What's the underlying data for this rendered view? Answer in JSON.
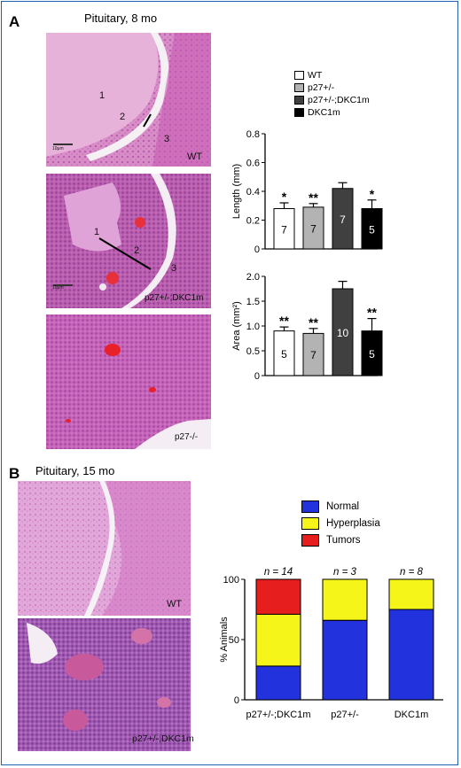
{
  "panel_a": {
    "letter": "A",
    "title": "Pituitary, 8 mo",
    "images": [
      {
        "label": "WT",
        "regions": [
          "1",
          "2",
          "3"
        ],
        "scalebar": "10μm"
      },
      {
        "label": "p27+/-;DKC1m",
        "regions": [
          "1",
          "2",
          "3"
        ],
        "scalebar": "10μm"
      },
      {
        "label": "p27-/-"
      }
    ],
    "legend": [
      {
        "label": "WT",
        "color": "#ffffff"
      },
      {
        "label": "p27+/-",
        "color": "#b3b3b3"
      },
      {
        "label": "p27+/-;DKC1m",
        "color": "#404040"
      },
      {
        "label": "DKC1m",
        "color": "#000000"
      }
    ]
  },
  "panel_b": {
    "letter": "B",
    "title": "Pituitary, 15 mo",
    "images": [
      {
        "label": "WT"
      },
      {
        "label": "p27+/-;DKC1m"
      }
    ],
    "legend": [
      {
        "label": "Normal",
        "color": "#2233dd"
      },
      {
        "label": "Hyperplasia",
        "color": "#f5f51a"
      },
      {
        "label": "Tumors",
        "color": "#e61e1e"
      }
    ]
  },
  "chart_data": [
    {
      "type": "bar",
      "categories": [
        "WT",
        "p27+/-",
        "p27+/-;DKC1m",
        "DKC1m"
      ],
      "values": [
        0.28,
        0.29,
        0.42,
        0.28
      ],
      "errors": [
        0.04,
        0.025,
        0.04,
        0.06
      ],
      "n_labels": [
        "7",
        "7",
        "7",
        "5"
      ],
      "significance": [
        "*",
        "**",
        "",
        "*"
      ],
      "colors": [
        "#ffffff",
        "#b3b3b3",
        "#404040",
        "#000000"
      ],
      "ylabel": "Length (mm)",
      "ylim": [
        0,
        0.8
      ],
      "yticks": [
        "0",
        "0.2",
        "0.4",
        "0.6",
        "0.8"
      ]
    },
    {
      "type": "bar",
      "categories": [
        "WT",
        "p27+/-",
        "p27+/-;DKC1m",
        "DKC1m"
      ],
      "values": [
        0.9,
        0.85,
        1.75,
        0.9
      ],
      "errors": [
        0.08,
        0.1,
        0.15,
        0.25
      ],
      "n_labels": [
        "5",
        "7",
        "10",
        "5"
      ],
      "significance": [
        "**",
        "**",
        "",
        "**"
      ],
      "colors": [
        "#ffffff",
        "#b3b3b3",
        "#404040",
        "#000000"
      ],
      "ylabel": "Area (mm²)",
      "ylim": [
        0,
        2.0
      ],
      "yticks": [
        "0",
        "0.5",
        "1.0",
        "1.5",
        "2.0"
      ]
    },
    {
      "type": "bar",
      "stacked": true,
      "categories": [
        "p27+/-;DKC1m",
        "p27+/-",
        "DKC1m"
      ],
      "n_labels": [
        "n = 14",
        "n = 3",
        "n = 8"
      ],
      "series": [
        {
          "name": "Normal",
          "values": [
            28,
            66,
            75
          ],
          "color": "#2233dd"
        },
        {
          "name": "Hyperplasia",
          "values": [
            43,
            34,
            25
          ],
          "color": "#f5f51a"
        },
        {
          "name": "Tumors",
          "values": [
            29,
            0,
            0
          ],
          "color": "#e61e1e"
        }
      ],
      "ylabel": "% Animals",
      "ylim": [
        0,
        100
      ],
      "yticks": [
        "0",
        "50",
        "100"
      ]
    }
  ]
}
